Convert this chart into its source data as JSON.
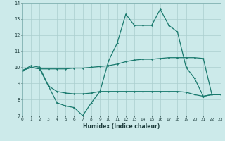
{
  "xlabel": "Humidex (Indice chaleur)",
  "x": [
    0,
    1,
    2,
    3,
    4,
    5,
    6,
    7,
    8,
    9,
    10,
    11,
    12,
    13,
    14,
    15,
    16,
    17,
    18,
    19,
    20,
    21,
    22,
    23
  ],
  "y_main": [
    9.8,
    10.1,
    10.0,
    8.85,
    7.8,
    7.6,
    7.5,
    7.0,
    7.8,
    8.5,
    10.4,
    11.5,
    13.3,
    12.6,
    12.6,
    12.6,
    13.6,
    12.6,
    12.2,
    10.0,
    9.3,
    8.2,
    8.3,
    8.3
  ],
  "y_upper": [
    9.8,
    10.0,
    9.9,
    9.9,
    9.9,
    9.9,
    9.95,
    9.95,
    10.0,
    10.05,
    10.1,
    10.2,
    10.35,
    10.45,
    10.5,
    10.5,
    10.55,
    10.6,
    10.6,
    10.6,
    10.6,
    10.55,
    8.3,
    8.3
  ],
  "y_lower": [
    9.8,
    10.0,
    9.9,
    8.85,
    8.5,
    8.4,
    8.35,
    8.35,
    8.4,
    8.5,
    8.5,
    8.5,
    8.5,
    8.5,
    8.5,
    8.5,
    8.5,
    8.5,
    8.5,
    8.45,
    8.3,
    8.2,
    8.3,
    8.3
  ],
  "ylim": [
    7,
    14
  ],
  "xlim": [
    0,
    23
  ],
  "yticks": [
    7,
    8,
    9,
    10,
    11,
    12,
    13,
    14
  ],
  "xticks": [
    0,
    1,
    2,
    3,
    4,
    5,
    6,
    7,
    8,
    9,
    10,
    11,
    12,
    13,
    14,
    15,
    16,
    17,
    18,
    19,
    20,
    21,
    22,
    23
  ],
  "line_color": "#1a7a6e",
  "bg_color": "#cceaea",
  "grid_color": "#aacece",
  "fig_bg": "#cceaea"
}
